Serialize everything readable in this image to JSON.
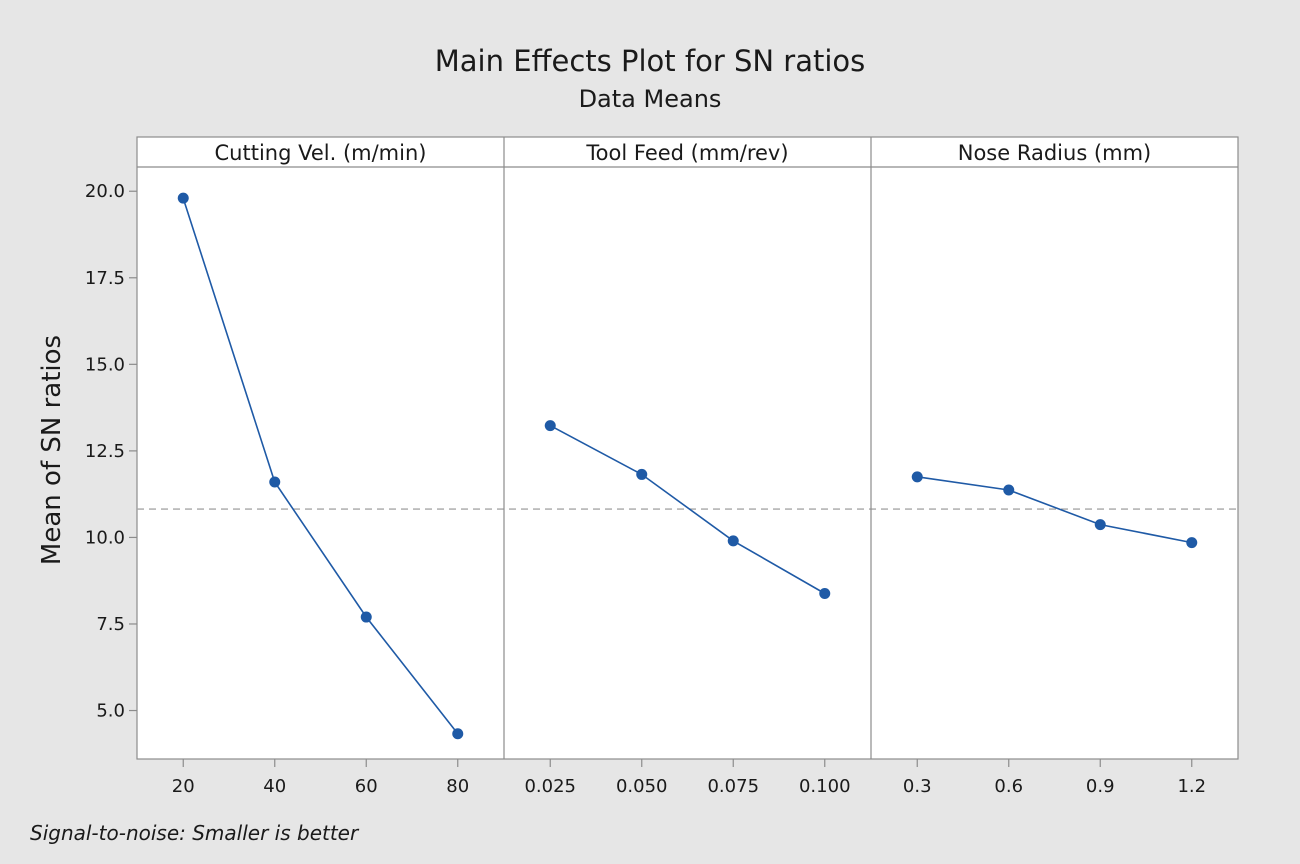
{
  "chart_data": {
    "type": "line",
    "title": "Main Effects Plot for SN ratios",
    "subtitle": "Data Means",
    "ylabel": "Mean of SN ratios",
    "ylim": [
      3.6,
      20.7
    ],
    "yticks": [
      "5.0",
      "7.5",
      "10.0",
      "12.5",
      "15.0",
      "17.5",
      "20.0"
    ],
    "reference_mean": 10.82,
    "footnote": "Signal-to-noise: Smaller is better",
    "colors": {
      "series": "#1f5aa6",
      "reference": "#a6a6a6",
      "axis": "#8c8c8c"
    },
    "panels": [
      {
        "name": "Cutting Vel. (m/min)",
        "categories": [
          "20",
          "40",
          "60",
          "80"
        ],
        "values": [
          19.8,
          11.6,
          7.7,
          4.33
        ]
      },
      {
        "name": "Tool Feed (mm/rev)",
        "categories": [
          "0.025",
          "0.050",
          "0.075",
          "0.100"
        ],
        "values": [
          13.23,
          11.82,
          9.9,
          8.38
        ]
      },
      {
        "name": "Nose Radius (mm)",
        "categories": [
          "0.3",
          "0.6",
          "0.9",
          "1.2"
        ],
        "values": [
          11.75,
          11.37,
          10.37,
          9.85
        ]
      }
    ]
  }
}
